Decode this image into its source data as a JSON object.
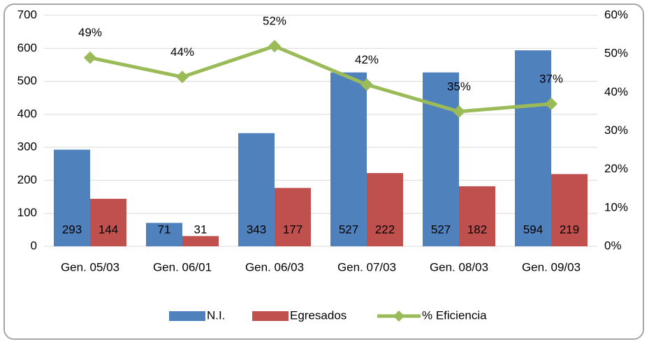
{
  "chart_data": {
    "type": "bar",
    "categories": [
      "Gen. 05/03",
      "Gen. 06/01",
      "Gen. 06/03",
      "Gen. 07/03",
      "Gen. 08/03",
      "Gen. 09/03"
    ],
    "series": [
      {
        "name": "N.I.",
        "color": "#4f81bd",
        "values": [
          293,
          71,
          343,
          527,
          527,
          594
        ]
      },
      {
        "name": "Egresados",
        "color": "#c0504d",
        "values": [
          144,
          31,
          177,
          222,
          182,
          219
        ]
      },
      {
        "name": "% Eficiencia",
        "color": "#9bbb59",
        "axis": "y2",
        "values": [
          49,
          44,
          52,
          42,
          35,
          37
        ],
        "value_labels": [
          "49%",
          "44%",
          "52%",
          "42%",
          "35%",
          "37%"
        ]
      }
    ],
    "ylim": [
      0,
      700
    ],
    "yticks": [
      0,
      100,
      200,
      300,
      400,
      500,
      600,
      700
    ],
    "y2lim": [
      0,
      60
    ],
    "y2ticks": [
      {
        "value": 0,
        "label": "0%"
      },
      {
        "value": 10,
        "label": "10%"
      },
      {
        "value": 20,
        "label": "20%"
      },
      {
        "value": 30,
        "label": "30%"
      },
      {
        "value": 40,
        "label": "40%"
      },
      {
        "value": 50,
        "label": "50%"
      },
      {
        "value": 60,
        "label": "60%"
      }
    ],
    "grid": true,
    "legend": "bottom"
  }
}
